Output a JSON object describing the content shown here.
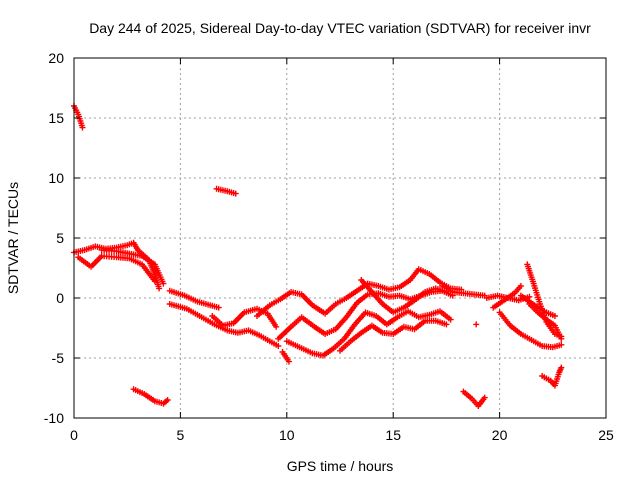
{
  "chart_data": {
    "type": "scatter",
    "title": "Day 244 of 2025, Sidereal Day-to-day VTEC variation (SDTVAR) for receiver invr",
    "xlabel": "GPS time / hours",
    "ylabel": "SDTVAR / TECUs",
    "xlim": [
      0,
      25
    ],
    "ylim": [
      -10,
      20
    ],
    "xticks": [
      0,
      5,
      10,
      15,
      20,
      25
    ],
    "yticks": [
      -10,
      -5,
      0,
      5,
      10,
      15,
      20
    ],
    "grid": true,
    "marker": "+",
    "series": [
      {
        "name": "SDTVAR",
        "color": "#ff0000",
        "tracks": [
          [
            [
              0.0,
              16.0
            ],
            [
              0.2,
              15.3
            ],
            [
              0.4,
              14.2
            ]
          ],
          [
            [
              6.7,
              9.1
            ],
            [
              7.2,
              8.9
            ],
            [
              7.6,
              8.7
            ]
          ],
          [
            [
              0.0,
              3.8
            ],
            [
              0.5,
              4.0
            ],
            [
              1.0,
              4.3
            ],
            [
              1.5,
              4.1
            ],
            [
              2.0,
              4.2
            ],
            [
              2.5,
              4.4
            ],
            [
              2.8,
              4.6
            ],
            [
              3.0,
              4.0
            ],
            [
              3.5,
              3.2
            ],
            [
              3.8,
              2.0
            ],
            [
              4.0,
              0.8
            ]
          ],
          [
            [
              0.2,
              3.4
            ],
            [
              0.8,
              2.6
            ],
            [
              1.3,
              3.5
            ],
            [
              2.0,
              3.4
            ],
            [
              2.6,
              3.3
            ],
            [
              3.2,
              2.8
            ],
            [
              3.8,
              1.4
            ]
          ],
          [
            [
              1.3,
              4.0
            ],
            [
              2.0,
              3.9
            ],
            [
              2.6,
              3.7
            ],
            [
              3.2,
              3.5
            ],
            [
              3.8,
              2.8
            ],
            [
              4.2,
              1.2
            ]
          ],
          [
            [
              4.5,
              0.6
            ],
            [
              5.2,
              0.2
            ],
            [
              5.8,
              -0.3
            ],
            [
              6.2,
              -0.5
            ],
            [
              6.8,
              -0.8
            ]
          ],
          [
            [
              4.5,
              -0.5
            ],
            [
              5.3,
              -0.9
            ],
            [
              6.0,
              -1.6
            ],
            [
              6.6,
              -2.2
            ],
            [
              7.2,
              -2.7
            ],
            [
              7.7,
              -2.9
            ],
            [
              8.2,
              -2.7
            ],
            [
              8.7,
              -3.1
            ],
            [
              9.2,
              -3.6
            ],
            [
              9.6,
              -4.0
            ]
          ],
          [
            [
              6.5,
              -1.5
            ],
            [
              7.0,
              -2.3
            ],
            [
              7.5,
              -2.1
            ],
            [
              8.0,
              -1.2
            ],
            [
              8.6,
              -0.9
            ],
            [
              9.1,
              -1.3
            ],
            [
              9.5,
              -2.4
            ]
          ],
          [
            [
              8.6,
              -1.5
            ],
            [
              9.2,
              -0.6
            ],
            [
              9.7,
              -0.1
            ],
            [
              10.2,
              0.5
            ],
            [
              10.7,
              0.3
            ],
            [
              11.2,
              -0.6
            ],
            [
              11.8,
              -1.3
            ],
            [
              12.3,
              -0.5
            ],
            [
              12.8,
              0.0
            ],
            [
              13.3,
              0.6
            ],
            [
              13.8,
              1.2
            ],
            [
              14.3,
              1.0
            ],
            [
              14.8,
              0.7
            ],
            [
              15.3,
              0.9
            ],
            [
              15.8,
              1.5
            ],
            [
              16.2,
              2.4
            ],
            [
              16.7,
              2.0
            ],
            [
              17.2,
              1.3
            ],
            [
              17.7,
              0.8
            ],
            [
              18.2,
              0.7
            ]
          ],
          [
            [
              9.6,
              -3.4
            ],
            [
              10.2,
              -2.4
            ],
            [
              10.7,
              -1.6
            ],
            [
              11.3,
              -2.4
            ],
            [
              11.8,
              -3.0
            ],
            [
              12.3,
              -2.6
            ],
            [
              12.8,
              -1.6
            ],
            [
              13.3,
              -0.4
            ],
            [
              13.8,
              0.3
            ],
            [
              14.3,
              0.4
            ],
            [
              14.8,
              0.1
            ],
            [
              15.3,
              0.2
            ],
            [
              15.8,
              -0.1
            ],
            [
              16.3,
              0.2
            ],
            [
              16.8,
              0.5
            ],
            [
              17.3,
              0.6
            ],
            [
              17.8,
              0.2
            ]
          ],
          [
            [
              10.0,
              -3.6
            ],
            [
              10.6,
              -4.1
            ],
            [
              11.2,
              -4.6
            ],
            [
              11.7,
              -4.8
            ],
            [
              12.2,
              -4.2
            ],
            [
              12.7,
              -3.4
            ],
            [
              13.2,
              -2.2
            ],
            [
              13.7,
              -1.2
            ],
            [
              14.2,
              -1.5
            ],
            [
              14.7,
              -2.2
            ],
            [
              15.2,
              -1.6
            ],
            [
              15.7,
              -1.1
            ],
            [
              16.2,
              -1.6
            ],
            [
              16.7,
              -1.4
            ],
            [
              17.2,
              -1.1
            ],
            [
              17.7,
              -1.8
            ]
          ],
          [
            [
              9.8,
              -4.5
            ],
            [
              10.1,
              -5.3
            ]
          ],
          [
            [
              12.5,
              -4.4
            ],
            [
              13.0,
              -3.6
            ],
            [
              13.5,
              -2.9
            ],
            [
              14.0,
              -2.3
            ],
            [
              14.5,
              -2.9
            ],
            [
              15.0,
              -3.0
            ],
            [
              15.5,
              -2.4
            ],
            [
              16.0,
              -2.6
            ],
            [
              16.5,
              -1.9
            ],
            [
              17.0,
              -1.9
            ],
            [
              17.5,
              -2.2
            ]
          ],
          [
            [
              13.5,
              1.5
            ],
            [
              14.0,
              0.5
            ],
            [
              14.5,
              -0.5
            ],
            [
              15.0,
              -1.2
            ],
            [
              15.5,
              -0.8
            ],
            [
              16.0,
              -0.2
            ],
            [
              16.5,
              0.5
            ],
            [
              17.0,
              0.8
            ],
            [
              17.5,
              0.5
            ]
          ],
          [
            [
              17.3,
              1.0
            ],
            [
              17.8,
              0.5
            ],
            [
              18.3,
              0.4
            ],
            [
              18.8,
              0.3
            ],
            [
              19.3,
              0.2
            ]
          ],
          [
            [
              18.9,
              -2.2
            ]
          ],
          [
            [
              19.4,
              0.0
            ],
            [
              19.9,
              0.2
            ],
            [
              20.4,
              0.0
            ],
            [
              20.9,
              -0.2
            ],
            [
              21.4,
              0.1
            ]
          ],
          [
            [
              19.7,
              -0.8
            ],
            [
              20.2,
              -0.2
            ],
            [
              20.7,
              0.4
            ],
            [
              21.0,
              1.0
            ]
          ],
          [
            [
              20.0,
              -1.2
            ],
            [
              20.5,
              -2.3
            ],
            [
              21.0,
              -3.0
            ],
            [
              21.5,
              -3.5
            ],
            [
              22.0,
              -4.0
            ],
            [
              22.5,
              -4.1
            ],
            [
              22.9,
              -3.9
            ]
          ],
          [
            [
              21.3,
              2.8
            ],
            [
              21.6,
              1.2
            ],
            [
              21.9,
              -0.5
            ],
            [
              22.2,
              -2.0
            ],
            [
              22.6,
              -3.0
            ],
            [
              22.9,
              -3.2
            ]
          ],
          [
            [
              21.4,
              -0.5
            ],
            [
              21.8,
              -1.2
            ],
            [
              22.2,
              -1.8
            ],
            [
              22.6,
              -2.3
            ],
            [
              22.9,
              -3.4
            ]
          ],
          [
            [
              21.0,
              0.2
            ],
            [
              21.4,
              -0.3
            ],
            [
              21.8,
              -0.8
            ],
            [
              22.2,
              -1.2
            ],
            [
              22.6,
              -1.5
            ]
          ],
          [
            [
              22.0,
              -6.5
            ],
            [
              22.4,
              -6.9
            ],
            [
              22.6,
              -7.3
            ],
            [
              22.8,
              -6.2
            ],
            [
              22.9,
              -5.8
            ]
          ],
          [
            [
              2.8,
              -7.6
            ],
            [
              3.3,
              -8.0
            ],
            [
              3.8,
              -8.6
            ],
            [
              4.2,
              -8.8
            ],
            [
              4.4,
              -8.5
            ]
          ],
          [
            [
              18.3,
              -7.8
            ],
            [
              18.7,
              -8.4
            ],
            [
              19.0,
              -9.0
            ],
            [
              19.3,
              -8.3
            ]
          ]
        ]
      }
    ]
  }
}
